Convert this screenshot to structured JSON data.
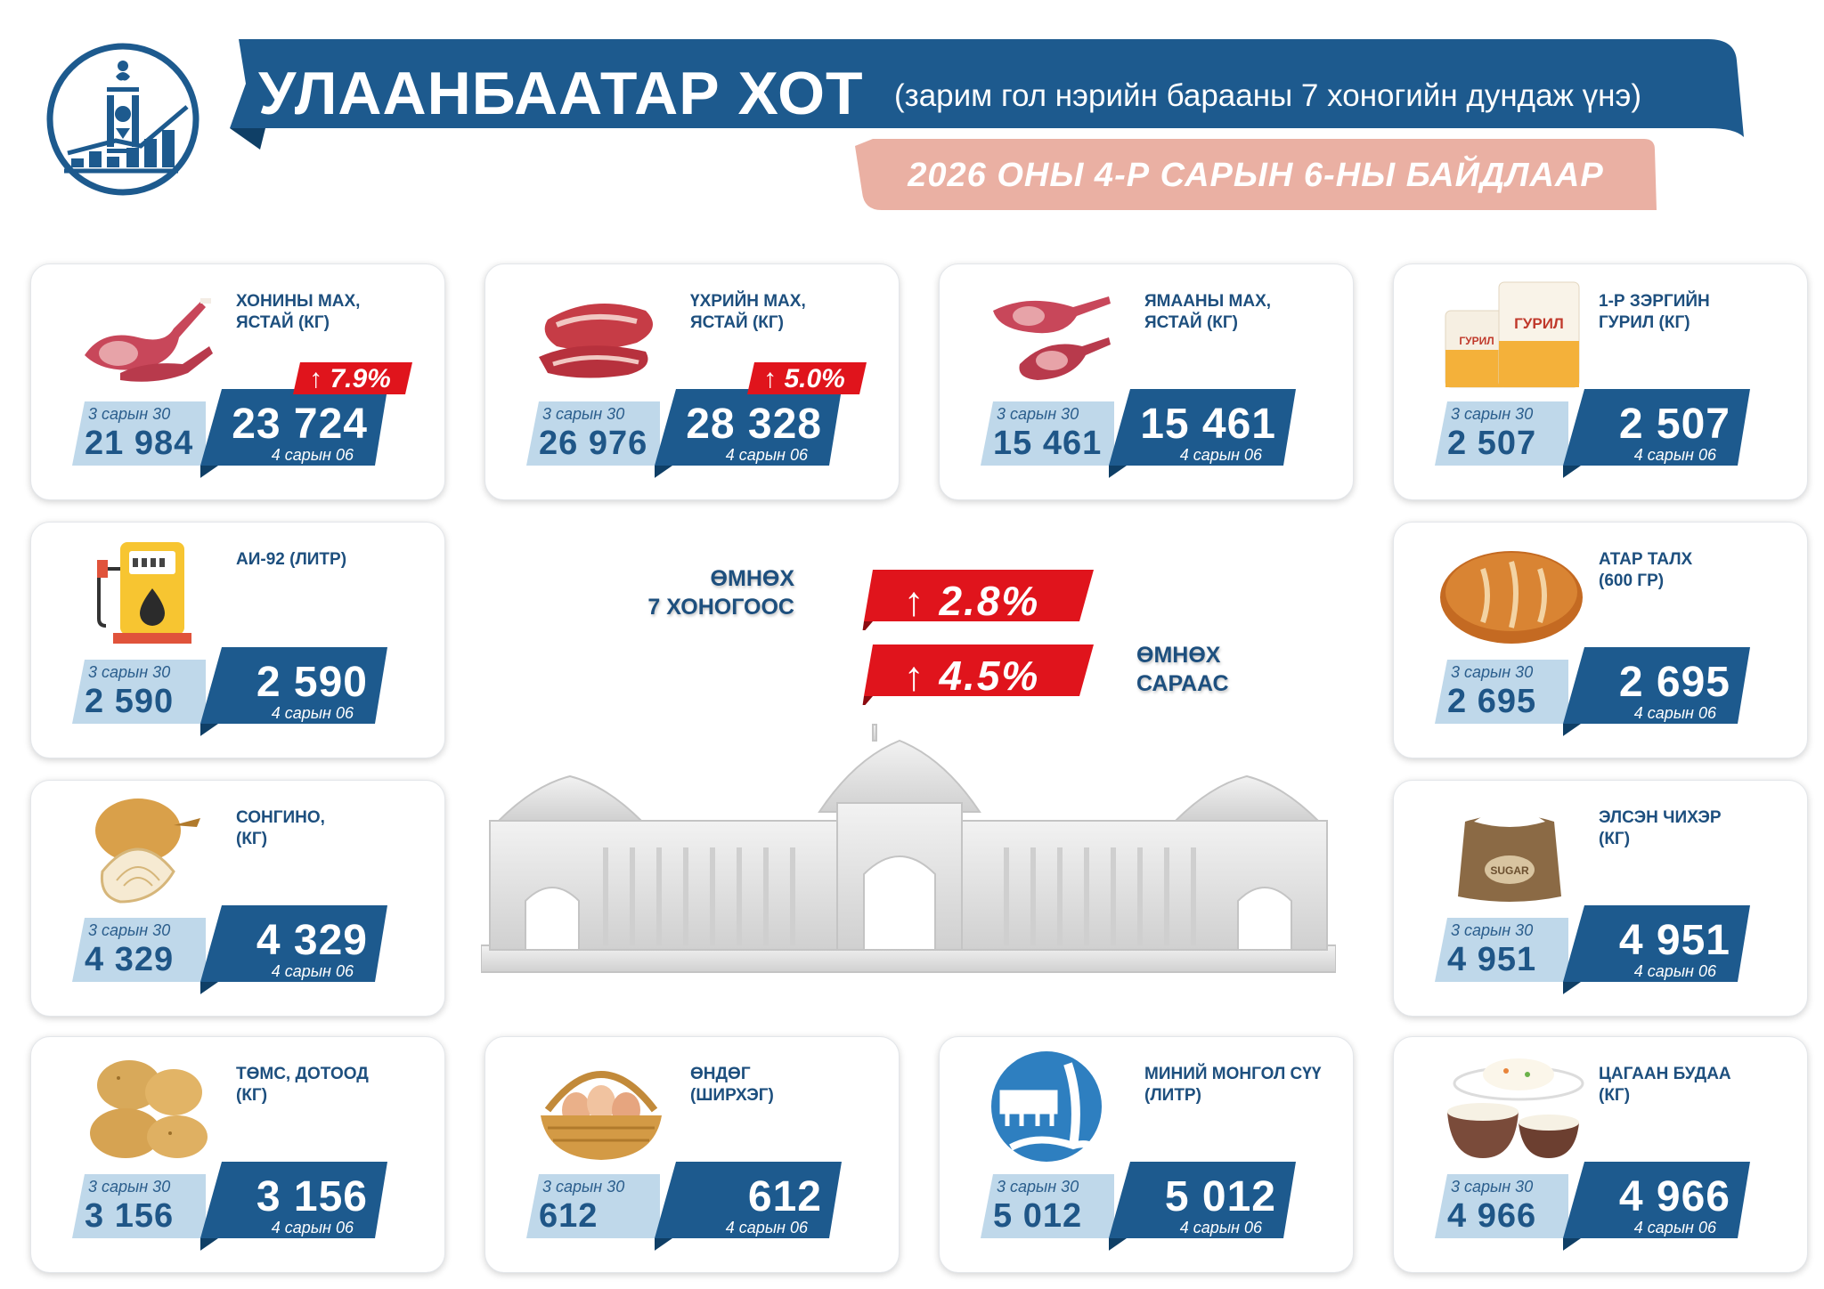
{
  "header": {
    "title": "УЛААНБААТАР ХОТ",
    "subtitle": "(зарим гол нэрийн барааны 7 хоногийн дундаж үнэ)",
    "date_line": "2026 ОНЫ 4-Р САРЫН 6-НЫ БАЙДЛААР"
  },
  "colors": {
    "navy": "#1d5a8e",
    "light_blue": "#bfd8ea",
    "salmon": "#eab0a3",
    "red": "#e0141c"
  },
  "summary": {
    "weekly_label_line1": "ӨМНӨХ",
    "weekly_label_line2": "7 ХОНОГООС",
    "weekly_change": "↑ 2.8%",
    "monthly_label_line1": "ӨМНӨХ",
    "monthly_label_line2": "САРААС",
    "monthly_change": "↑ 4.5%"
  },
  "items": [
    {
      "icon": "mutton-icon",
      "name_line1": "ХОНИНЫ МАХ,",
      "name_line2": "ЯСТАЙ (КГ)",
      "prev_label": "3 сарын 30",
      "prev_value": "21 984",
      "cur_value": "23 724",
      "cur_label": "4 сарын 06",
      "change": "↑ 7.9%"
    },
    {
      "icon": "beef-icon",
      "name_line1": "ҮХРИЙН МАХ,",
      "name_line2": "ЯСТАЙ (КГ)",
      "prev_label": "3 сарын 30",
      "prev_value": "26 976",
      "cur_value": "28 328",
      "cur_label": "4 сарын 06",
      "change": "↑ 5.0%"
    },
    {
      "icon": "goat-meat-icon",
      "name_line1": "ЯМААНЫ МАХ,",
      "name_line2": "ЯСТАЙ (КГ)",
      "prev_label": "3 сарын 30",
      "prev_value": "15 461",
      "cur_value": "15 461",
      "cur_label": "4 сарын 06"
    },
    {
      "icon": "flour-icon",
      "name_line1": "1-Р ЗЭРГИЙН",
      "name_line2": "ГУРИЛ (КГ)",
      "prev_label": "3 сарын 30",
      "prev_value": "2 507",
      "cur_value": "2 507",
      "cur_label": "4 сарын 06",
      "pic_text": "ГУРИЛ"
    },
    {
      "icon": "fuel-pump-icon",
      "name_line1": "АИ-92 (ЛИТР)",
      "name_line2": "",
      "prev_label": "3 сарын 30",
      "prev_value": "2 590",
      "cur_value": "2 590",
      "cur_label": "4 сарын 06"
    },
    {
      "icon": "bread-icon",
      "name_line1": "АТАР ТАЛХ",
      "name_line2": " (600 ГР)",
      "prev_label": "3 сарын 30",
      "prev_value": "2 695",
      "cur_value": "2 695",
      "cur_label": "4 сарын 06"
    },
    {
      "icon": "onion-icon",
      "name_line1": "СОНГИНО,",
      "name_line2": "(КГ)",
      "prev_label": "3 сарын 30",
      "prev_value": "4 329",
      "cur_value": "4 329",
      "cur_label": "4 сарын 06"
    },
    {
      "icon": "sugar-sack-icon",
      "name_line1": "ЭЛСЭН ЧИХЭР",
      "name_line2": "(КГ)",
      "prev_label": "3 сарын 30",
      "prev_value": "4 951",
      "cur_value": "4 951",
      "cur_label": "4 сарын 06",
      "pic_text": "SUGAR"
    },
    {
      "icon": "potato-icon",
      "name_line1": "ТӨМС, ДОТООД",
      "name_line2": "(КГ)",
      "prev_label": "3 сарын 30",
      "prev_value": "3 156",
      "cur_value": "3 156",
      "cur_label": "4 сарын 06"
    },
    {
      "icon": "egg-basket-icon",
      "name_line1": "ӨНДӨГ",
      "name_line2": "(ШИРХЭГ)",
      "prev_label": "3 сарын 30",
      "prev_value": "612",
      "cur_value": "612",
      "cur_label": "4 сарын 06"
    },
    {
      "icon": "milk-icon",
      "name_line1": "МИНИЙ МОНГОЛ СҮҮ",
      "name_line2": "(ЛИТР)",
      "prev_label": "3 сарын 30",
      "prev_value": "5 012",
      "cur_value": "5 012",
      "cur_label": "4 сарын 06"
    },
    {
      "icon": "rice-bowl-icon",
      "name_line1": "ЦАГААН БУДАА",
      "name_line2": "(КГ)",
      "prev_label": "3 сарын 30",
      "prev_value": "4 966",
      "cur_value": "4 966",
      "cur_label": "4 сарын 06"
    }
  ]
}
